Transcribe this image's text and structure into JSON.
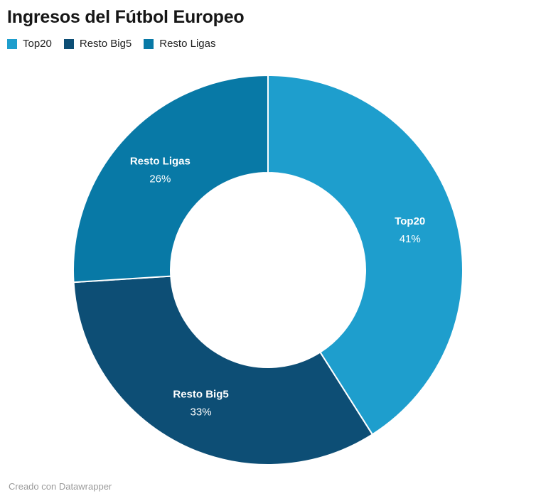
{
  "header": {
    "title": "Ingresos del Fútbol Europeo"
  },
  "legend": {
    "items": [
      {
        "label": "Top20",
        "color": "#1E9ECD"
      },
      {
        "label": "Resto Big5",
        "color": "#0D4E75"
      },
      {
        "label": "Resto Ligas",
        "color": "#0879A6"
      }
    ]
  },
  "chart_data": {
    "type": "pie",
    "subtype": "donut",
    "title": "Ingresos del Fútbol Europeo",
    "categories": [
      "Top20",
      "Resto Big5",
      "Resto Ligas"
    ],
    "values": [
      41,
      33,
      26
    ],
    "unit": "%",
    "value_labels": [
      "41%",
      "33%",
      "26%"
    ],
    "colors": [
      "#1E9ECD",
      "#0D4E75",
      "#0879A6"
    ],
    "start_angle_deg": 0,
    "direction": "clockwise",
    "inner_radius_ratio": 0.5,
    "slice_separator_color": "#ffffff",
    "legend_position": "top-left",
    "labels_inside_slices": true
  },
  "footer": {
    "credit": "Creado con Datawrapper"
  }
}
